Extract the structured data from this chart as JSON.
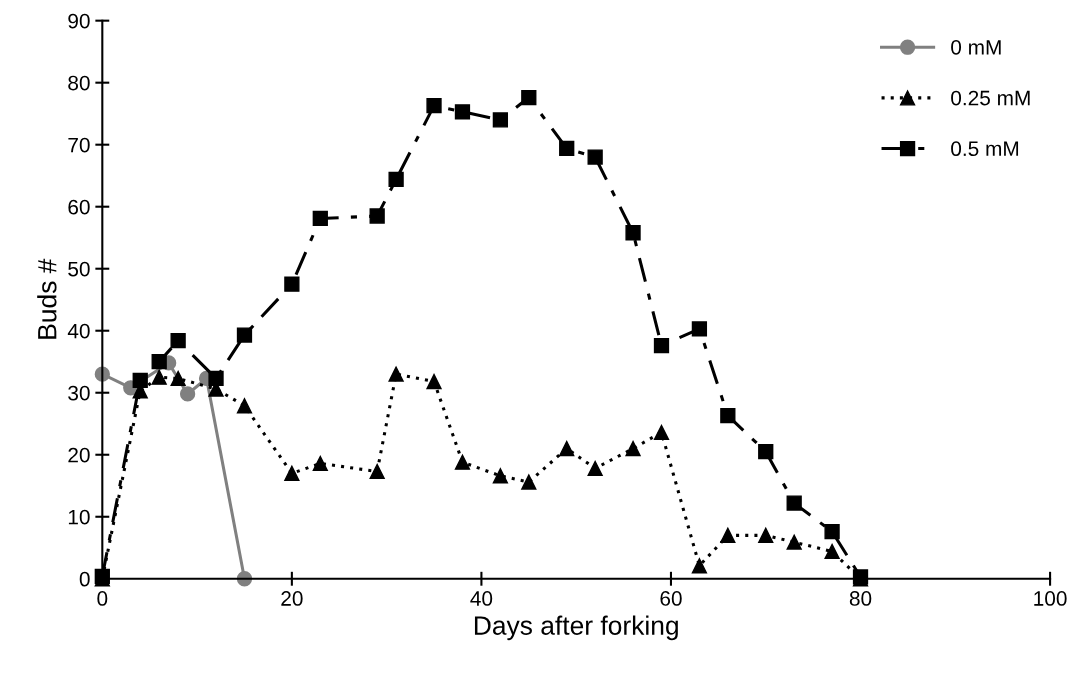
{
  "chart_data": {
    "type": "line",
    "xlabel": "Days after forking",
    "ylabel": "Buds #",
    "xlim": [
      0,
      100
    ],
    "ylim": [
      0,
      90
    ],
    "xticks": [
      0,
      20,
      40,
      60,
      80,
      100
    ],
    "yticks": [
      0,
      10,
      20,
      30,
      40,
      50,
      60,
      70,
      80,
      90
    ],
    "grid": false,
    "legend": "top right",
    "series": [
      {
        "name": "0 mM",
        "color": "#808080",
        "marker": "circle",
        "line_style": "solid",
        "x": [
          0,
          3,
          7,
          9,
          11,
          15
        ],
        "values": [
          33,
          30.8,
          34.8,
          29.8,
          32.3,
          0
        ]
      },
      {
        "name": "0.25 mM",
        "color": "#000000",
        "marker": "triangle",
        "line_style": "dotted",
        "x": [
          0,
          4,
          6,
          8,
          12,
          15,
          20,
          23,
          29,
          31,
          35,
          38,
          42,
          45,
          49,
          52,
          56,
          59,
          63,
          66,
          70,
          73,
          77,
          80
        ],
        "values": [
          0,
          30.3,
          32.5,
          32.3,
          30.6,
          27.9,
          17,
          18.6,
          17.3,
          33,
          31.8,
          18.8,
          16.6,
          15.6,
          21,
          17.8,
          21,
          23.6,
          2.1,
          7,
          7,
          5.9,
          4.4,
          0
        ]
      },
      {
        "name": "0.5 mM",
        "color": "#000000",
        "marker": "square",
        "line_style": "dashed",
        "x": [
          0,
          4,
          6,
          8,
          12,
          15,
          20,
          23,
          29,
          31,
          35,
          38,
          42,
          45,
          49,
          52,
          56,
          59,
          63,
          66,
          70,
          73,
          77,
          80
        ],
        "values": [
          0.4,
          32,
          35,
          38.4,
          32.3,
          39.3,
          47.5,
          58.1,
          58.5,
          64.4,
          76.3,
          75.3,
          74,
          77.6,
          69.4,
          68,
          55.8,
          37.6,
          40.3,
          26.3,
          20.5,
          12.2,
          7.6,
          0.3
        ]
      }
    ]
  }
}
